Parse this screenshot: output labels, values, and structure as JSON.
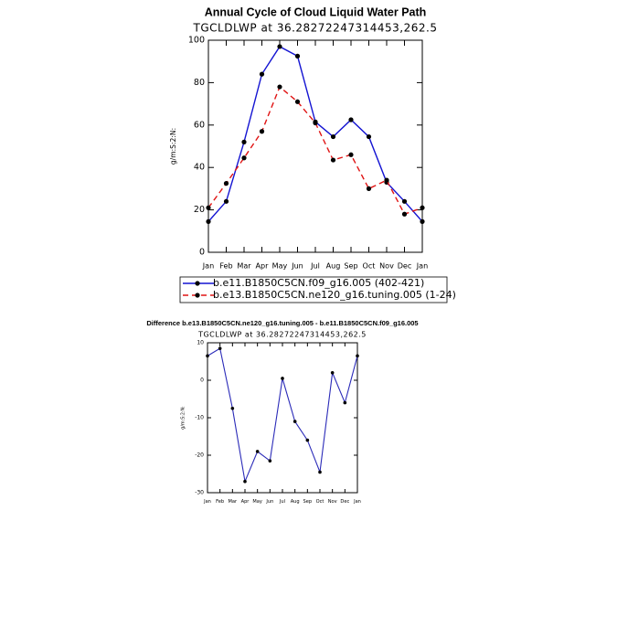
{
  "chart_data": [
    {
      "type": "line",
      "title": "Annual Cycle of Cloud Liquid Water Path",
      "subtitle": "TGCLDLWP at 36.28272247314453,262.5",
      "ylabel": "g/m:S:2:N:",
      "categories": [
        "Jan",
        "Feb",
        "Mar",
        "Apr",
        "May",
        "Jun",
        "Jul",
        "Aug",
        "Sep",
        "Oct",
        "Nov",
        "Dec",
        "Jan"
      ],
      "series": [
        {
          "name": "b.e11.B1850C5CN.f09_g16.005 (402-421)",
          "color": "#1414d2",
          "line_style": "solid",
          "values": [
            14.5,
            24,
            52,
            84,
            97,
            92.5,
            61.5,
            54.5,
            62.5,
            54.5,
            33,
            24,
            14.5
          ]
        },
        {
          "name": "b.e13.B1850C5CN.ne120_g16.tuning.005 (1-24)",
          "color": "#e01414",
          "line_style": "dashed",
          "values": [
            21,
            32.5,
            44.5,
            57,
            78,
            71,
            61,
            43.5,
            46,
            30,
            34,
            18,
            21
          ]
        }
      ],
      "marker_color": "#000000",
      "ylim": [
        0,
        100
      ],
      "yticks": [
        0,
        20,
        40,
        60,
        80,
        100
      ],
      "legend": "bottom"
    },
    {
      "type": "line",
      "title": "Difference b.e13.B1850C5CN.ne120_g16.tuning.005 - b.e11.B1850C5CN.f09_g16.005",
      "subtitle": "TGCLDLWP at 36.28272247314453,262.5",
      "ylabel": "g/m:S:2:N:",
      "categories": [
        "Jan",
        "Feb",
        "Mar",
        "Apr",
        "May",
        "Jun",
        "Jul",
        "Aug",
        "Sep",
        "Oct",
        "Nov",
        "Dec",
        "Jan"
      ],
      "series": [
        {
          "color": "#2a2ab8",
          "line_style": "solid",
          "values": [
            6.5,
            8.5,
            -7.5,
            -27,
            -19,
            -21.5,
            0.5,
            -11,
            -16,
            -24.5,
            2,
            -6,
            6.5
          ]
        }
      ],
      "marker_color": "#000000",
      "ylim": [
        -30,
        10
      ],
      "yticks": [
        -30,
        -20,
        -10,
        0,
        10
      ]
    }
  ]
}
